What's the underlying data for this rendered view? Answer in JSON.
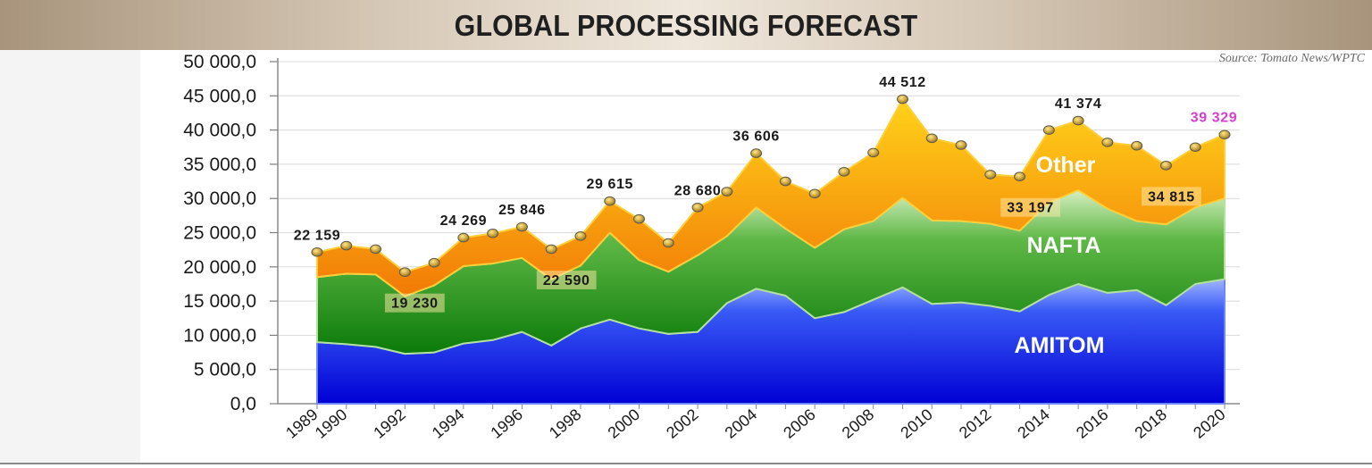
{
  "header": {
    "title": "GLOBAL PROCESSING FORECAST"
  },
  "source": "Source: Tomato News/WPTC",
  "colors": {
    "amitom": "#1d33f2",
    "nafta": "#3c9e2c",
    "other": "#f4960c",
    "highlight_label": "#d63fd0"
  },
  "chart_data": {
    "type": "area",
    "stacked": true,
    "title": "GLOBAL PROCESSING FORECAST",
    "xlabel": "",
    "ylabel": "",
    "ylim": [
      0,
      50000
    ],
    "y_ticks": [
      "0,0",
      "5 000,0",
      "10 000,0",
      "15 000,0",
      "20 000,0",
      "25 000,0",
      "30 000,0",
      "35 000,0",
      "40 000,0",
      "45 000,0",
      "50 000,0"
    ],
    "x": [
      1989,
      1990,
      1991,
      1992,
      1993,
      1994,
      1995,
      1996,
      1997,
      1998,
      1999,
      2000,
      2001,
      2002,
      2003,
      2004,
      2005,
      2006,
      2007,
      2008,
      2009,
      2010,
      2011,
      2012,
      2013,
      2014,
      2015,
      2016,
      2017,
      2018,
      2019,
      2020
    ],
    "x_tick_labels": [
      "1989",
      "1990",
      "1992",
      "1994",
      "1996",
      "1998",
      "2000",
      "2002",
      "2004",
      "2006",
      "2008",
      "2010",
      "2012",
      "2014",
      "2016",
      "2018",
      "2020"
    ],
    "grid": true,
    "series": [
      {
        "name": "AMITOM",
        "values": [
          9000,
          8700,
          8300,
          7300,
          7500,
          8800,
          9300,
          10500,
          8500,
          11000,
          12300,
          11000,
          10200,
          10500,
          14700,
          16800,
          15800,
          12500,
          13400,
          15200,
          17000,
          14600,
          14800,
          14300,
          13500,
          15900,
          17500,
          16200,
          16600,
          14400,
          17500,
          18200
        ]
      },
      {
        "name": "NAFTA",
        "values": [
          9500,
          10300,
          10600,
          8400,
          9800,
          11300,
          11200,
          10800,
          9700,
          9200,
          12700,
          10000,
          9100,
          11200,
          9800,
          11900,
          9800,
          10300,
          12100,
          11500,
          13100,
          12200,
          11900,
          12000,
          11800,
          13500,
          13700,
          12300,
          10100,
          11800,
          11200,
          11800
        ]
      },
      {
        "name": "Other",
        "values": [
          3659,
          4100,
          3700,
          3530,
          3300,
          4169,
          4400,
          4546,
          4390,
          4300,
          4615,
          6000,
          4200,
          6980,
          6500,
          7906,
          6900,
          7900,
          8400,
          10000,
          14412,
          12000,
          11100,
          7200,
          7897,
          10600,
          10174,
          9700,
          11000,
          8615,
          8800,
          9329
        ]
      }
    ],
    "totals": [
      22159,
      23100,
      22600,
      19230,
      20600,
      24269,
      24900,
      25846,
      22590,
      24500,
      29615,
      27000,
      23500,
      28680,
      31000,
      36606,
      32500,
      30700,
      33900,
      36700,
      44512,
      38800,
      37800,
      33500,
      33197,
      40000,
      41374,
      38200,
      37700,
      34815,
      37500,
      39329
    ],
    "data_labels": [
      {
        "x": 1989,
        "text": "22 159"
      },
      {
        "x": 1992,
        "text": "19 230"
      },
      {
        "x": 1994,
        "text": "24 269"
      },
      {
        "x": 1996,
        "text": "25 846"
      },
      {
        "x": 1997,
        "text": "22 590"
      },
      {
        "x": 1999,
        "text": "29 615"
      },
      {
        "x": 2002,
        "text": "28 680"
      },
      {
        "x": 2004,
        "text": "36 606"
      },
      {
        "x": 2009,
        "text": "44 512"
      },
      {
        "x": 2013,
        "text": "33 197"
      },
      {
        "x": 2015,
        "text": "41 374"
      },
      {
        "x": 2018,
        "text": "34 815"
      },
      {
        "x": 2020,
        "text": "39 329"
      }
    ],
    "area_labels": [
      "AMITOM",
      "NAFTA",
      "Other"
    ]
  }
}
